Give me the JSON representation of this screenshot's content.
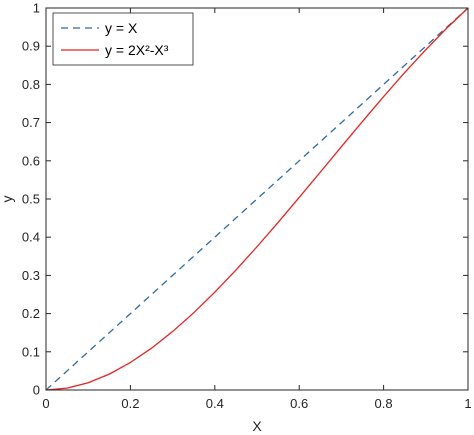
{
  "chart_data": {
    "type": "line",
    "xlabel": "X",
    "ylabel": "y",
    "xlim": [
      0,
      1
    ],
    "ylim": [
      0,
      1
    ],
    "x_ticks": [
      "0",
      "0.2",
      "0.4",
      "0.6",
      "0.8",
      "1"
    ],
    "y_ticks": [
      "0",
      "0.1",
      "0.2",
      "0.3",
      "0.4",
      "0.5",
      "0.6",
      "0.7",
      "0.8",
      "0.9",
      "1"
    ],
    "grid": false,
    "legend_position": "top-left",
    "series": [
      {
        "name": "y = X",
        "color": "#2b6ca3",
        "style": "dashed",
        "x": [
          0,
          0.1,
          0.2,
          0.3,
          0.4,
          0.5,
          0.6,
          0.7,
          0.8,
          0.9,
          1
        ],
        "y": [
          0,
          0.1,
          0.2,
          0.3,
          0.4,
          0.5,
          0.6,
          0.7,
          0.8,
          0.9,
          1
        ]
      },
      {
        "name": "y = 2X²-X³",
        "color": "#e8221f",
        "style": "solid",
        "x": [
          0,
          0.05,
          0.1,
          0.15,
          0.2,
          0.25,
          0.3,
          0.35,
          0.4,
          0.45,
          0.5,
          0.55,
          0.6,
          0.65,
          0.7,
          0.75,
          0.8,
          0.85,
          0.9,
          0.95,
          1
        ],
        "y": [
          0,
          0.0049,
          0.019,
          0.0416,
          0.072,
          0.1094,
          0.153,
          0.2021,
          0.256,
          0.3139,
          0.375,
          0.4386,
          0.504,
          0.5704,
          0.637,
          0.7031,
          0.768,
          0.8309,
          0.891,
          0.9476,
          1
        ]
      }
    ]
  }
}
